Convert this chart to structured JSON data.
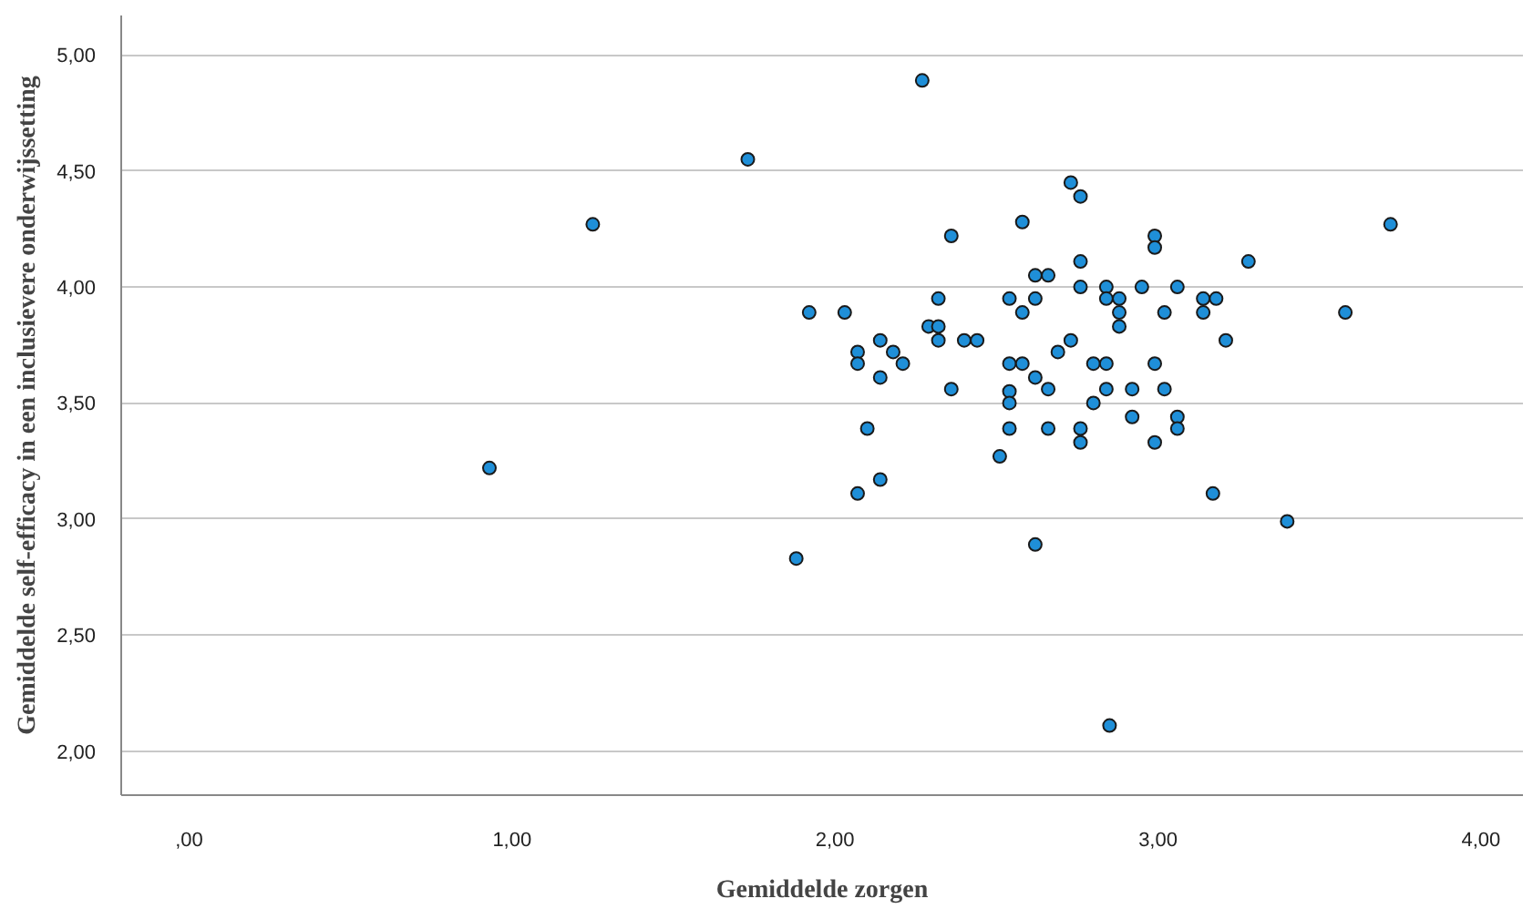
{
  "chart_data": {
    "type": "scatter",
    "xlabel": "Gemiddelde zorgen",
    "ylabel": "Gemiddelde self-efficacy in een inclusievere onderwijssetting",
    "x": [
      1.92,
      2.03,
      2.32,
      2.29,
      2.32,
      2.32,
      2.4,
      2.44,
      2.14,
      2.07,
      2.18,
      2.07,
      2.21,
      2.14,
      2.36,
      2.36,
      2.73,
      2.76,
      2.58,
      2.99,
      2.99,
      2.76,
      3.28,
      2.62,
      2.66,
      2.76,
      2.84,
      2.95,
      3.06,
      2.54,
      2.62,
      2.84,
      2.88,
      3.14,
      3.18,
      2.58,
      2.88,
      3.02,
      3.14,
      2.88,
      3.21,
      2.73,
      2.69,
      2.54,
      2.58,
      2.8,
      2.84,
      2.99,
      2.62,
      2.66,
      2.84,
      2.92,
      3.02,
      2.1,
      2.51,
      2.14,
      2.07,
      1.88,
      2.54,
      2.54,
      2.8,
      2.92,
      3.06,
      2.54,
      2.66,
      2.76,
      2.76,
      2.99,
      3.06,
      3.17,
      2.62,
      0.93,
      1.25,
      1.73,
      2.27,
      3.4,
      3.58,
      3.72,
      2.85
    ],
    "series": [
      {
        "color": "#1f8fd8",
        "values": [
          3.89,
          3.89,
          3.95,
          3.83,
          3.83,
          3.77,
          3.77,
          3.77,
          3.77,
          3.72,
          3.72,
          3.67,
          3.67,
          3.61,
          4.22,
          3.56,
          4.45,
          4.39,
          4.28,
          4.22,
          4.17,
          4.11,
          4.11,
          4.05,
          4.05,
          4.0,
          4.0,
          4.0,
          4.0,
          3.95,
          3.95,
          3.95,
          3.95,
          3.95,
          3.95,
          3.89,
          3.89,
          3.89,
          3.89,
          3.83,
          3.77,
          3.77,
          3.72,
          3.67,
          3.67,
          3.67,
          3.67,
          3.67,
          3.61,
          3.56,
          3.56,
          3.56,
          3.56,
          3.39,
          3.27,
          3.17,
          3.11,
          2.83,
          3.55,
          3.5,
          3.5,
          3.44,
          3.44,
          3.39,
          3.39,
          3.39,
          3.33,
          3.33,
          3.39,
          3.11,
          2.89,
          3.22,
          4.27,
          4.55,
          4.89,
          2.99,
          3.89,
          4.27,
          2.11
        ]
      }
    ],
    "xlim": [
      -0.21,
      4.13
    ],
    "ylim": [
      1.81,
      5.17
    ],
    "xticks": [
      {
        "value": 0,
        "label": ",00"
      },
      {
        "value": 1,
        "label": "1,00"
      },
      {
        "value": 2,
        "label": "2,00"
      },
      {
        "value": 3,
        "label": "3,00"
      },
      {
        "value": 4,
        "label": "4,00"
      }
    ],
    "yticks": [
      {
        "value": 2,
        "label": "2,00"
      },
      {
        "value": 2.5,
        "label": "2,50"
      },
      {
        "value": 3,
        "label": "3,00"
      },
      {
        "value": 3.5,
        "label": "3,50"
      },
      {
        "value": 4,
        "label": "4,00"
      },
      {
        "value": 4.5,
        "label": "4,50"
      },
      {
        "value": 5,
        "label": "5,00"
      }
    ],
    "grid": "y",
    "marker": "circle"
  }
}
